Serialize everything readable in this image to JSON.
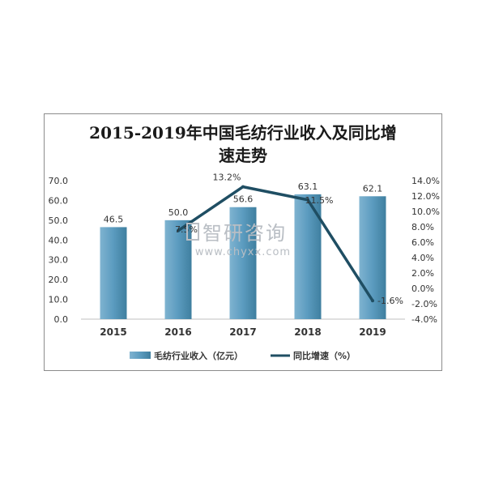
{
  "chart_data": {
    "type": "bar",
    "title_line1": "2015-2019年中国毛纺行业收入及同比增",
    "title_line2": "速走势",
    "categories": [
      "2015",
      "2016",
      "2017",
      "2018",
      "2019"
    ],
    "series": [
      {
        "name": "毛纺行业收入（亿元）",
        "type": "bar",
        "axis": "left",
        "values": [
          46.5,
          50.0,
          56.6,
          63.1,
          62.1
        ],
        "labels": [
          "46.5",
          "50.0",
          "56.6",
          "63.1",
          "62.1"
        ],
        "color": "#5b9bbf"
      },
      {
        "name": "同比增速（%）",
        "type": "line",
        "axis": "right",
        "values": [
          null,
          7.5,
          13.2,
          11.5,
          -1.6
        ],
        "labels": [
          "",
          "7.5%",
          "13.2%",
          "11.5%",
          "-1.6%"
        ],
        "color": "#1f4e63"
      }
    ],
    "y_left": {
      "ylim": [
        0,
        70
      ],
      "ticks": [
        "0.0",
        "10.0",
        "20.0",
        "30.0",
        "40.0",
        "50.0",
        "60.0",
        "70.0"
      ]
    },
    "y_right": {
      "ylim": [
        -4,
        14
      ],
      "ticks": [
        "-4.0%",
        "-2.0%",
        "0.0%",
        "2.0%",
        "4.0%",
        "6.0%",
        "8.0%",
        "10.0%",
        "12.0%",
        "14.0%"
      ]
    },
    "legend_position": "bottom",
    "grid": false
  },
  "watermark": {
    "brand": "智研咨询",
    "url": "www.chyxx.com"
  }
}
